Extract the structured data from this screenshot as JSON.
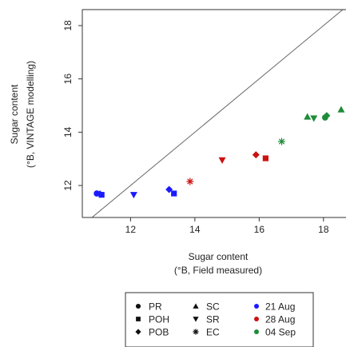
{
  "chart_data": {
    "type": "scatter",
    "xlabel": "Sugar content",
    "xlabel_unit": "(°B, Field measured)",
    "ylabel": "Sugar content",
    "ylabel_unit": "(°B, VINTAGE modelling)",
    "xlim": [
      10.5,
      18.7
    ],
    "ylim": [
      10.8,
      18.6
    ],
    "x_ticks": [
      12,
      14,
      16,
      18
    ],
    "y_ticks": [
      12,
      14,
      16,
      18
    ],
    "grid": false,
    "reference_line": "1:1",
    "legend_position": "bottom",
    "colors": {
      "21 Aug": "#1a1aff",
      "28 Aug": "#cc1111",
      "04 Sep": "#1e8c3a",
      "line": "#666666",
      "axis": "#333333"
    },
    "legend": {
      "shapes": [
        {
          "label": "PR",
          "marker": "circle"
        },
        {
          "label": "POH",
          "marker": "square"
        },
        {
          "label": "POB",
          "marker": "diamond"
        },
        {
          "label": "SC",
          "marker": "triangle-up"
        },
        {
          "label": "SR",
          "marker": "triangle-down"
        },
        {
          "label": "EC",
          "marker": "asterisk"
        }
      ],
      "dates": [
        {
          "label": "21 Aug",
          "color_key": "21 Aug"
        },
        {
          "label": "28 Aug",
          "color_key": "28 Aug"
        },
        {
          "label": "04 Sep",
          "color_key": "04 Sep"
        }
      ]
    },
    "series": [
      {
        "name": "21 Aug",
        "points": [
          {
            "x": 10.95,
            "y": 11.7,
            "marker": "circle"
          },
          {
            "x": 11.1,
            "y": 11.65,
            "marker": "square"
          },
          {
            "x": 11.05,
            "y": 11.68,
            "marker": "diamond"
          },
          {
            "x": 12.1,
            "y": 11.65,
            "marker": "triangle-down"
          },
          {
            "x": 13.2,
            "y": 11.85,
            "marker": "diamond"
          },
          {
            "x": 13.35,
            "y": 11.7,
            "marker": "square"
          }
        ]
      },
      {
        "name": "28 Aug",
        "points": [
          {
            "x": 13.85,
            "y": 12.15,
            "marker": "asterisk"
          },
          {
            "x": 14.85,
            "y": 12.95,
            "marker": "triangle-down"
          },
          {
            "x": 15.9,
            "y": 13.15,
            "marker": "diamond"
          },
          {
            "x": 16.2,
            "y": 13.02,
            "marker": "square"
          }
        ]
      },
      {
        "name": "04 Sep",
        "points": [
          {
            "x": 16.7,
            "y": 13.65,
            "marker": "asterisk"
          },
          {
            "x": 17.5,
            "y": 14.58,
            "marker": "triangle-up"
          },
          {
            "x": 17.7,
            "y": 14.52,
            "marker": "triangle-down"
          },
          {
            "x": 18.05,
            "y": 14.55,
            "marker": "circle"
          },
          {
            "x": 18.1,
            "y": 14.62,
            "marker": "diamond"
          },
          {
            "x": 18.55,
            "y": 14.85,
            "marker": "triangle-up"
          }
        ]
      }
    ]
  }
}
